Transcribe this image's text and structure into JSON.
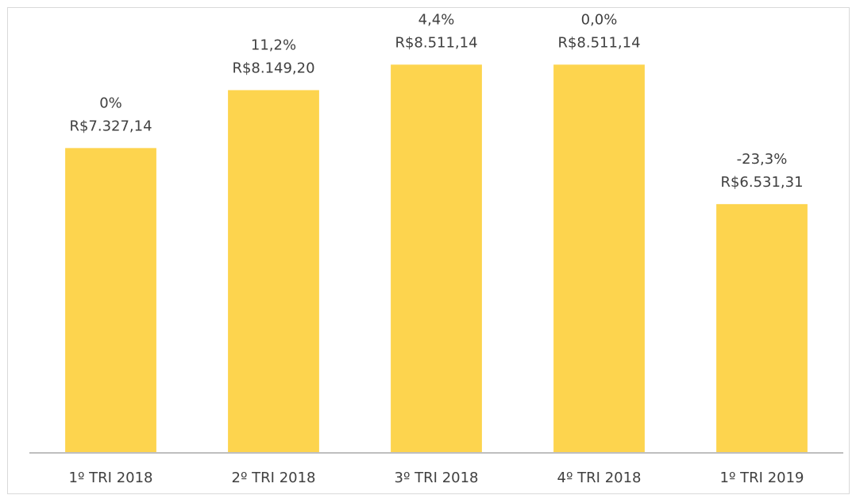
{
  "chart_data": {
    "type": "bar",
    "categories": [
      "1º TRI 2018",
      "2º TRI 2018",
      "3º TRI 2018",
      "4º TRI 2018",
      "1º TRI 2019"
    ],
    "values": [
      7327.14,
      8149.2,
      8511.14,
      8511.14,
      6531.31
    ],
    "value_labels": [
      "R$7.327,14",
      "R$8.149,20",
      "R$8.511,14",
      "R$8.511,14",
      "R$6.531,31"
    ],
    "change_labels": [
      "0%",
      "11,2%",
      "4,4%",
      "0,0%",
      "-23,3%"
    ],
    "color": "#fdd44e",
    "ylim": [
      3000,
      9000
    ]
  }
}
